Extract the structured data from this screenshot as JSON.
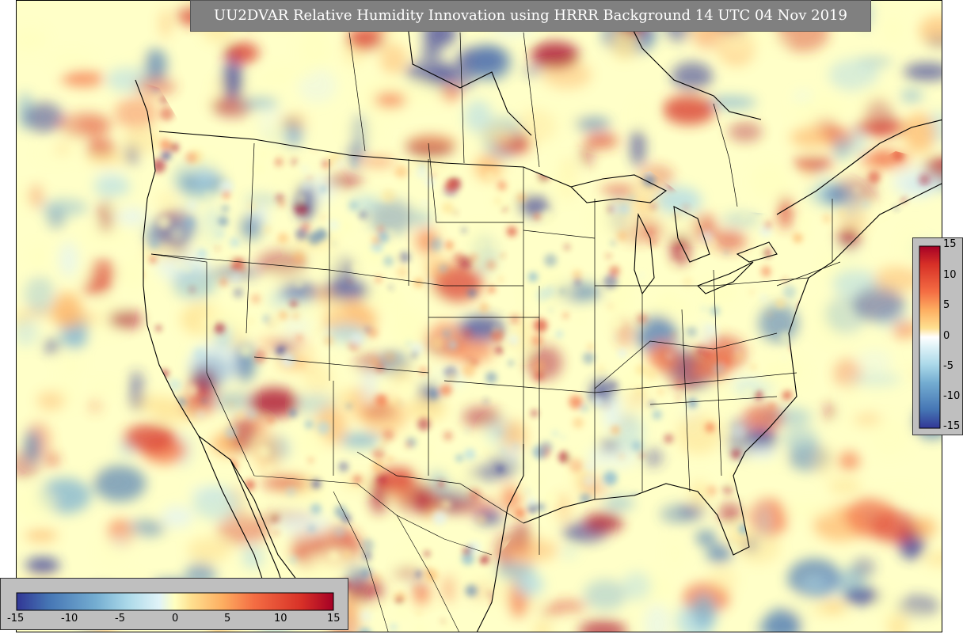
{
  "title": "UU2DVAR Relative Humidity Innovation using HRRR Background 14 UTC 04 Nov 2019",
  "map": {
    "field": "relative humidity innovation",
    "region": "CONUS",
    "colormap": [
      "#313695",
      "#4575b4",
      "#74add1",
      "#abd9e9",
      "#e0f3f8",
      "#ffffbf",
      "#fee090",
      "#fdae61",
      "#f46d43",
      "#d73027",
      "#a50026"
    ],
    "background_color": "#ffffc8",
    "coastline_color": "#000000"
  },
  "colorbar_right": {
    "ticks": [
      "15",
      "10",
      "5",
      "0",
      "-5",
      "-10",
      "-15"
    ],
    "vmin": -15,
    "vmax": 15
  },
  "colorbar_bottom": {
    "ticks": [
      "-15",
      "-10",
      "-5",
      "0",
      "5",
      "10",
      "15"
    ],
    "vmin": -15,
    "vmax": 15
  }
}
